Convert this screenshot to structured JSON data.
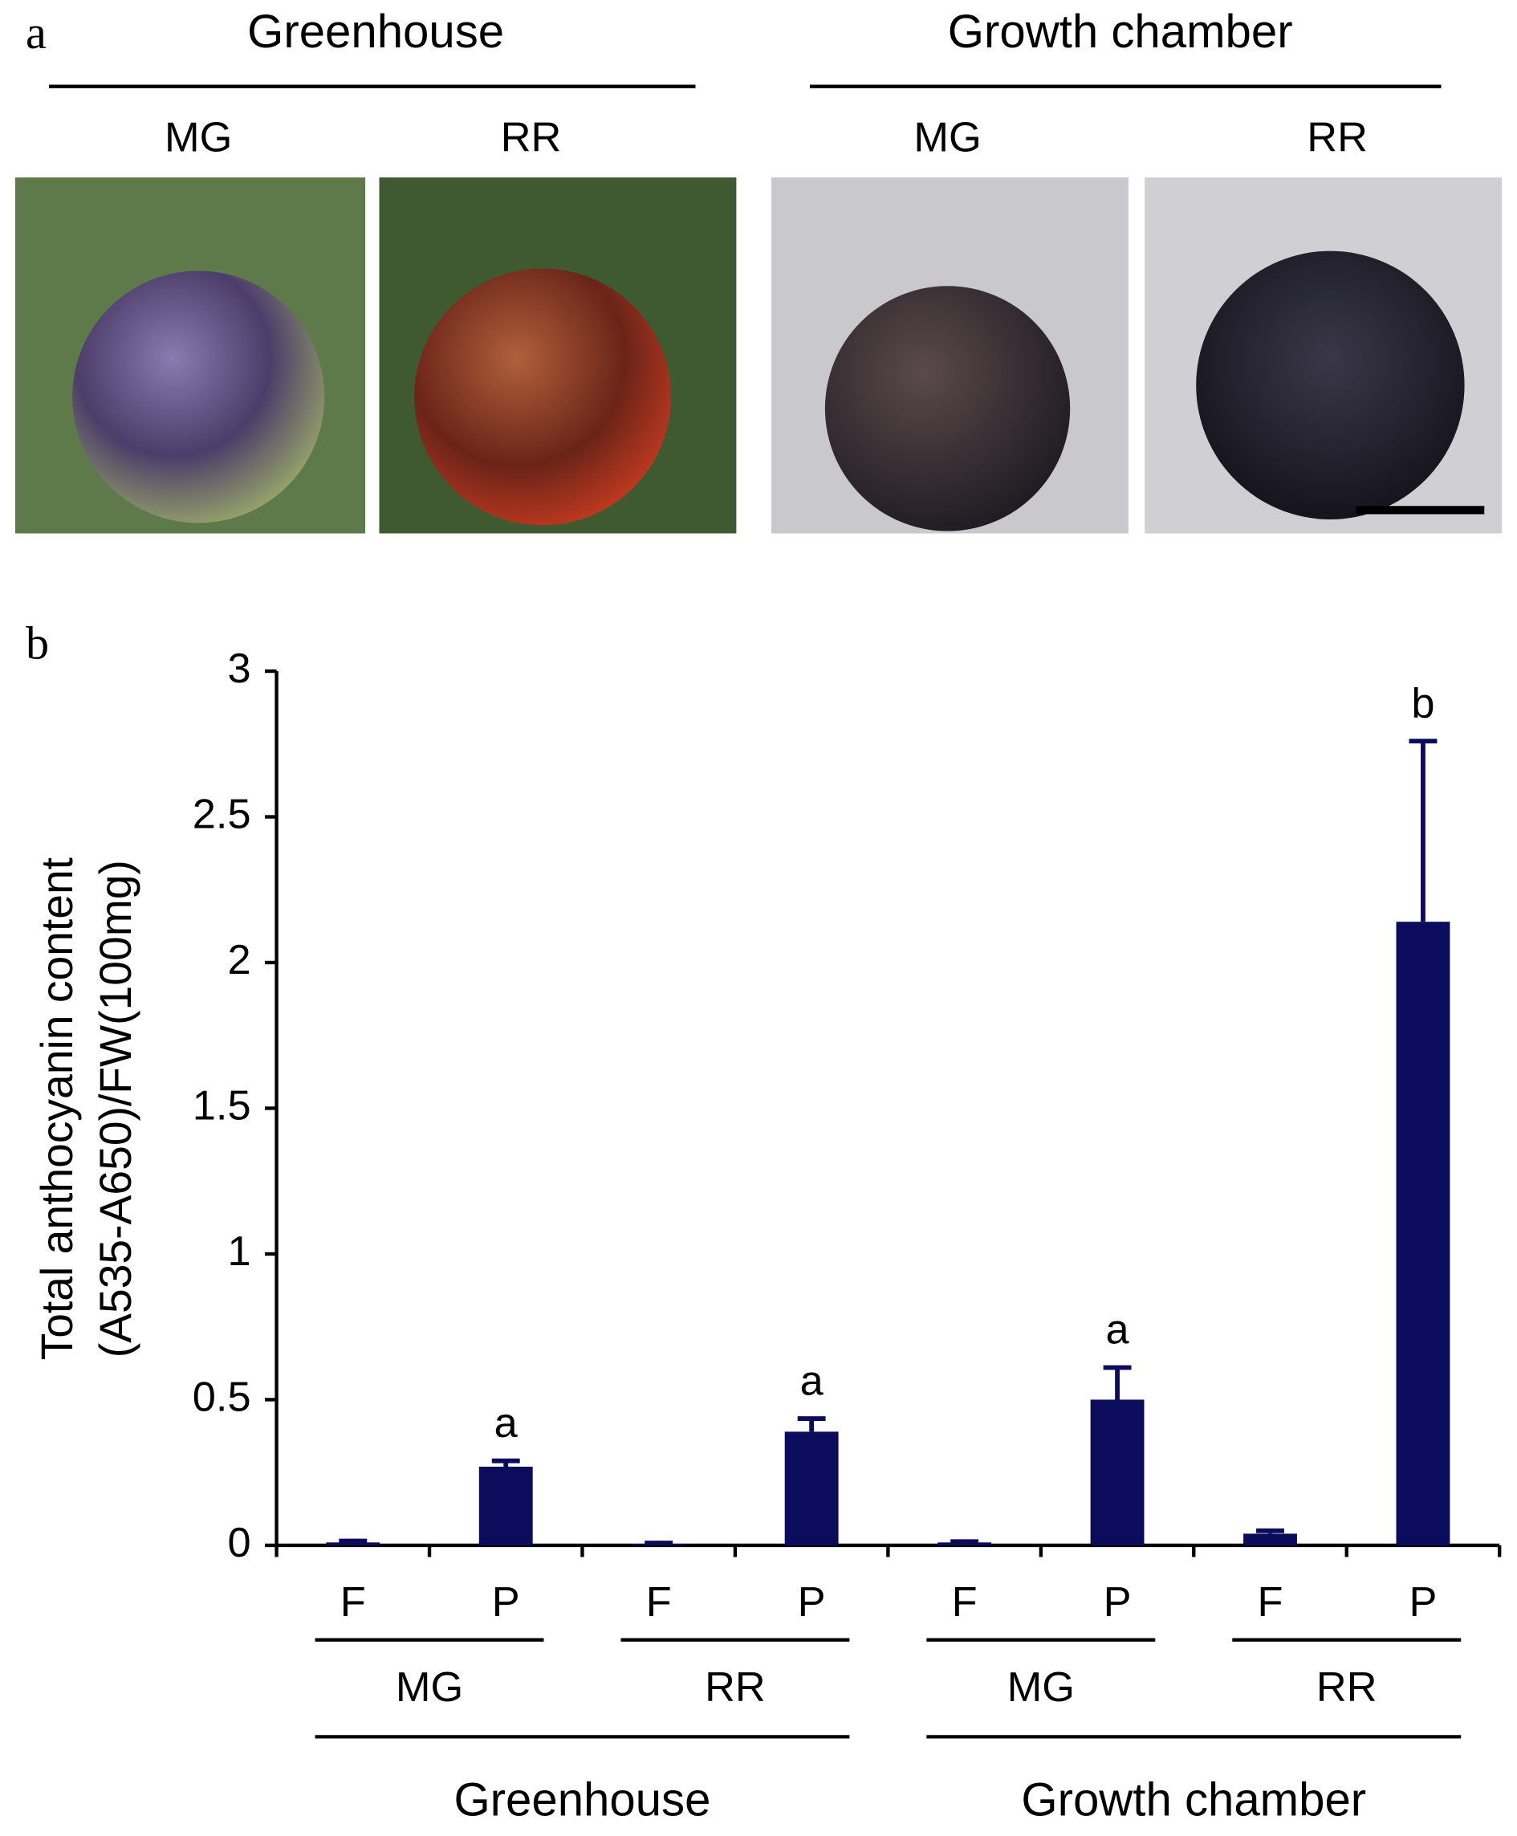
{
  "panel_a": {
    "label": "a",
    "groups": [
      {
        "title": "Greenhouse",
        "stages": [
          "MG",
          "RR"
        ]
      },
      {
        "title": "Growth chamber",
        "stages": [
          "MG",
          "RR"
        ]
      }
    ]
  },
  "chart_data": {
    "type": "bar",
    "panel_label": "b",
    "ylabel": [
      "Total anthocyanin content",
      "(A535-A650)/FW(100mg)"
    ],
    "categories": [
      "F",
      "P",
      "F",
      "P",
      "F",
      "P",
      "F",
      "P"
    ],
    "values": [
      0.01,
      0.27,
      0.005,
      0.39,
      0.01,
      0.5,
      0.04,
      2.14
    ],
    "errors": [
      0.005,
      0.02,
      0.003,
      0.045,
      0.003,
      0.11,
      0.01,
      0.62
    ],
    "significance": [
      null,
      "a",
      null,
      "a",
      null,
      "a",
      null,
      "b"
    ],
    "stage_labels": [
      "MG",
      "RR",
      "MG",
      "RR"
    ],
    "condition_labels": [
      "Greenhouse",
      "Growth chamber"
    ],
    "color": "#0c0c5c",
    "ylim": [
      0,
      3
    ],
    "yticks": [
      0,
      0.5,
      1,
      1.5,
      2,
      2.5,
      3
    ]
  }
}
